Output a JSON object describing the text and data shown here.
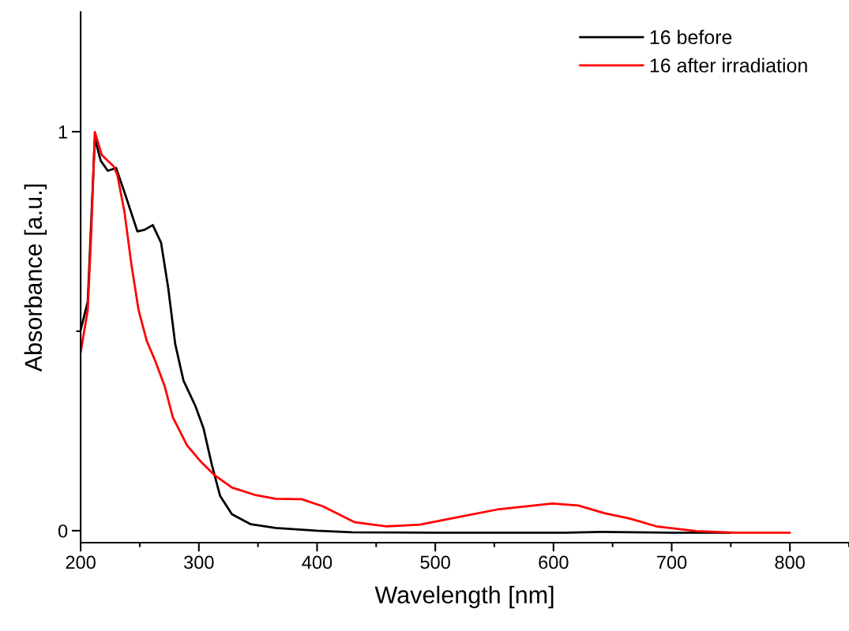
{
  "chart_data": {
    "type": "line",
    "xlabel": "Wavelength [nm]",
    "ylabel": "Absorbance [a.u.]",
    "xlim": [
      200,
      850
    ],
    "ylim": [
      -0.03,
      1.3
    ],
    "xticks": [
      200,
      {
        "value": 250,
        "label": null
      },
      300,
      {
        "value": 350,
        "label": null
      },
      400,
      {
        "value": 450,
        "label": null
      },
      500,
      {
        "value": 550,
        "label": null
      },
      600,
      {
        "value": 650,
        "label": null
      },
      700,
      {
        "value": 750,
        "label": null
      },
      800,
      {
        "value": 850,
        "label": null
      }
    ],
    "yticks": [
      0,
      {
        "value": 0.5,
        "label": null
      },
      1
    ],
    "legend": "top right",
    "grid": false,
    "line_style": "solid",
    "marker": "none",
    "series": [
      {
        "name": "16 before",
        "color": "#000000",
        "x": [
          200,
          206,
          212,
          217,
          223,
          230,
          237,
          248,
          254,
          261,
          268,
          274,
          280,
          287,
          297,
          304,
          311,
          318,
          328,
          344,
          365,
          400,
          430,
          500,
          610,
          640,
          700,
          750
        ],
        "values": [
          0.503,
          0.574,
          0.983,
          0.927,
          0.902,
          0.909,
          0.849,
          0.75,
          0.754,
          0.766,
          0.722,
          0.61,
          0.468,
          0.376,
          0.313,
          0.256,
          0.165,
          0.087,
          0.041,
          0.016,
          0.007,
          0.0,
          -0.004,
          -0.005,
          -0.005,
          -0.003,
          -0.005,
          -0.005
        ]
      },
      {
        "name": "16 after irradiation",
        "color": "#ff0000",
        "x": [
          200,
          206,
          209,
          212,
          218,
          228,
          231,
          237,
          243,
          249,
          256,
          263,
          271,
          278,
          290,
          302,
          313,
          328,
          347,
          365,
          387,
          405,
          432,
          459,
          487,
          521,
          554,
          599,
          621,
          643,
          665,
          687,
          721,
          754,
          800
        ],
        "values": [
          0.447,
          0.553,
          0.75,
          0.999,
          0.941,
          0.913,
          0.892,
          0.8,
          0.666,
          0.553,
          0.475,
          0.426,
          0.363,
          0.284,
          0.214,
          0.172,
          0.14,
          0.108,
          0.09,
          0.08,
          0.079,
          0.061,
          0.021,
          0.011,
          0.015,
          0.035,
          0.054,
          0.068,
          0.063,
          0.044,
          0.03,
          0.011,
          -0.001,
          -0.005,
          -0.005
        ]
      }
    ]
  }
}
